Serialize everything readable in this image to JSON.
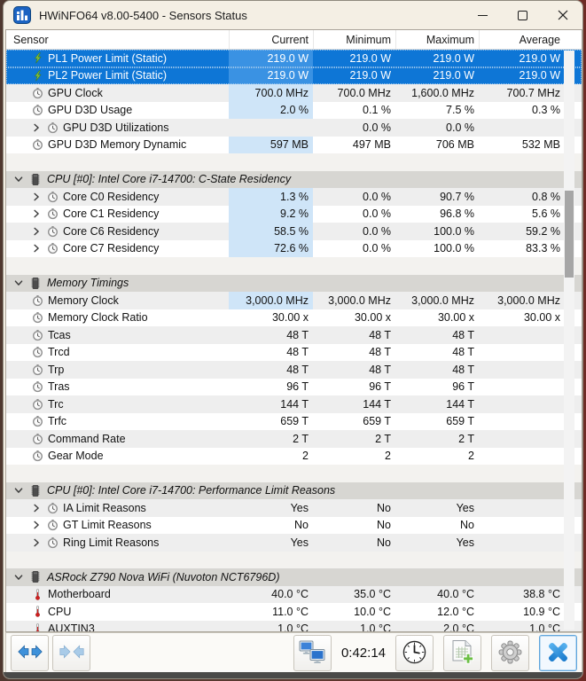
{
  "window": {
    "title": "HWiNFO64 v8.00-5400 - Sensors Status"
  },
  "columns": [
    "Sensor",
    "Current",
    "Minimum",
    "Maximum",
    "Average"
  ],
  "colors": {
    "selection_blue": "#0e76d6",
    "current_highlight": "#cfe5f8",
    "section_header_bg": "#d7d6d2",
    "row_shade": "#eeeeee",
    "titlebar_bg": "#f4efe4",
    "accent_blue": "#2f93e2"
  },
  "rows": [
    {
      "t": "s",
      "l": "PL1 Power Limit (Static)",
      "i": "lightning-icon",
      "sel": true,
      "hl": true,
      "v": [
        "219.0 W",
        "219.0 W",
        "219.0 W",
        "219.0 W"
      ]
    },
    {
      "t": "s",
      "l": "PL2 Power Limit (Static)",
      "i": "lightning-icon",
      "sel": true,
      "hl": true,
      "v": [
        "219.0 W",
        "219.0 W",
        "219.0 W",
        "219.0 W"
      ]
    },
    {
      "t": "s",
      "l": "GPU Clock",
      "i": "clock-icon",
      "sh": true,
      "hl": true,
      "v": [
        "700.0 MHz",
        "700.0 MHz",
        "1,600.0 MHz",
        "700.7 MHz"
      ]
    },
    {
      "t": "s",
      "l": "GPU D3D Usage",
      "i": "clock-icon",
      "hl": true,
      "v": [
        "2.0 %",
        "0.1 %",
        "7.5 %",
        "0.3 %"
      ]
    },
    {
      "t": "s",
      "l": "GPU D3D Utilizations",
      "i": "clock-icon",
      "c": true,
      "sh": true,
      "v": [
        "",
        "0.0 %",
        "0.0 %",
        ""
      ]
    },
    {
      "t": "s",
      "l": "GPU D3D Memory Dynamic",
      "i": "clock-icon",
      "hl": true,
      "v": [
        "597 MB",
        "497 MB",
        "706 MB",
        "532 MB"
      ]
    },
    {
      "t": "sp"
    },
    {
      "t": "h",
      "l": "CPU [#0]: Intel Core i7-14700: C-State Residency"
    },
    {
      "t": "s",
      "l": "Core C0 Residency",
      "i": "clock-icon",
      "c": true,
      "sh": true,
      "hl": true,
      "v": [
        "1.3 %",
        "0.0 %",
        "90.7 %",
        "0.8 %"
      ]
    },
    {
      "t": "s",
      "l": "Core C1 Residency",
      "i": "clock-icon",
      "c": true,
      "hl": true,
      "v": [
        "9.2 %",
        "0.0 %",
        "96.8 %",
        "5.6 %"
      ]
    },
    {
      "t": "s",
      "l": "Core C6 Residency",
      "i": "clock-icon",
      "c": true,
      "sh": true,
      "hl": true,
      "v": [
        "58.5 %",
        "0.0 %",
        "100.0 %",
        "59.2 %"
      ]
    },
    {
      "t": "s",
      "l": "Core C7 Residency",
      "i": "clock-icon",
      "c": true,
      "hl": true,
      "v": [
        "72.6 %",
        "0.0 %",
        "100.0 %",
        "83.3 %"
      ]
    },
    {
      "t": "sp"
    },
    {
      "t": "h",
      "l": "Memory Timings"
    },
    {
      "t": "s",
      "l": "Memory Clock",
      "i": "clock-icon",
      "sh": true,
      "hl": true,
      "v": [
        "3,000.0 MHz",
        "3,000.0 MHz",
        "3,000.0 MHz",
        "3,000.0 MHz"
      ]
    },
    {
      "t": "s",
      "l": "Memory Clock Ratio",
      "i": "clock-icon",
      "v": [
        "30.00 x",
        "30.00 x",
        "30.00 x",
        "30.00 x"
      ]
    },
    {
      "t": "s",
      "l": "Tcas",
      "i": "clock-icon",
      "sh": true,
      "v": [
        "48 T",
        "48 T",
        "48 T",
        ""
      ]
    },
    {
      "t": "s",
      "l": "Trcd",
      "i": "clock-icon",
      "v": [
        "48 T",
        "48 T",
        "48 T",
        ""
      ]
    },
    {
      "t": "s",
      "l": "Trp",
      "i": "clock-icon",
      "sh": true,
      "v": [
        "48 T",
        "48 T",
        "48 T",
        ""
      ]
    },
    {
      "t": "s",
      "l": "Tras",
      "i": "clock-icon",
      "v": [
        "96 T",
        "96 T",
        "96 T",
        ""
      ]
    },
    {
      "t": "s",
      "l": "Trc",
      "i": "clock-icon",
      "sh": true,
      "v": [
        "144 T",
        "144 T",
        "144 T",
        ""
      ]
    },
    {
      "t": "s",
      "l": "Trfc",
      "i": "clock-icon",
      "v": [
        "659 T",
        "659 T",
        "659 T",
        ""
      ]
    },
    {
      "t": "s",
      "l": "Command Rate",
      "i": "clock-icon",
      "sh": true,
      "v": [
        "2 T",
        "2 T",
        "2 T",
        ""
      ]
    },
    {
      "t": "s",
      "l": "Gear Mode",
      "i": "clock-icon",
      "v": [
        "2",
        "2",
        "2",
        ""
      ]
    },
    {
      "t": "sp"
    },
    {
      "t": "h",
      "l": "CPU [#0]: Intel Core i7-14700: Performance Limit Reasons"
    },
    {
      "t": "s",
      "l": "IA Limit Reasons",
      "i": "clock-icon",
      "c": true,
      "sh": true,
      "v": [
        "Yes",
        "No",
        "Yes",
        ""
      ]
    },
    {
      "t": "s",
      "l": "GT Limit Reasons",
      "i": "clock-icon",
      "c": true,
      "v": [
        "No",
        "No",
        "No",
        ""
      ]
    },
    {
      "t": "s",
      "l": "Ring Limit Reasons",
      "i": "clock-icon",
      "c": true,
      "sh": true,
      "v": [
        "Yes",
        "No",
        "Yes",
        ""
      ]
    },
    {
      "t": "sp"
    },
    {
      "t": "h",
      "l": "ASRock Z790 Nova WiFi (Nuvoton NCT6796D)"
    },
    {
      "t": "s",
      "l": "Motherboard",
      "i": "thermometer-icon",
      "sh": true,
      "v": [
        "40.0 °C",
        "35.0 °C",
        "40.0 °C",
        "38.8 °C"
      ]
    },
    {
      "t": "s",
      "l": "CPU",
      "i": "thermometer-icon",
      "v": [
        "11.0 °C",
        "10.0 °C",
        "12.0 °C",
        "10.9 °C"
      ]
    },
    {
      "t": "s",
      "l": "AUXTIN3",
      "i": "thermometer-icon",
      "sh": true,
      "v": [
        "1.0 °C",
        "1.0 °C",
        "2.0 °C",
        "1.0 °C"
      ]
    }
  ],
  "toolbar": {
    "uptime": "0:42:14",
    "buttons": [
      {
        "name": "expand-columns-button",
        "icon": "expand-arrows-icon"
      },
      {
        "name": "collapse-columns-button",
        "icon": "collapse-arrows-icon",
        "disabled": true
      },
      {
        "name": "remote-monitoring-button",
        "icon": "monitors-icon"
      },
      {
        "name": "reset-clock-button",
        "icon": "toolbar-clock-icon"
      },
      {
        "name": "report-button",
        "icon": "report-add-icon"
      },
      {
        "name": "settings-button",
        "icon": "gear-icon"
      },
      {
        "name": "close-button",
        "icon": "close-x-icon",
        "focused": true
      }
    ]
  }
}
